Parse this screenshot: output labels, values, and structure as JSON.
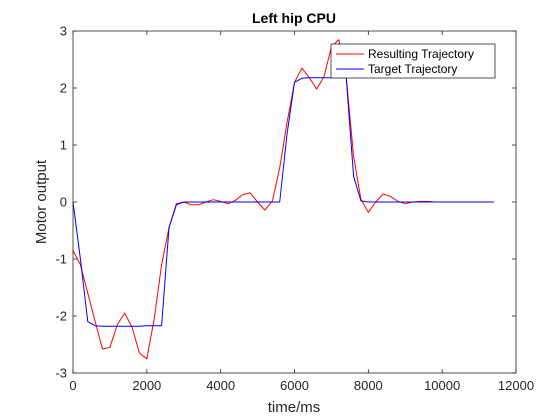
{
  "chart_data": {
    "type": "line",
    "title": "Left hip CPU",
    "xlabel": "time/ms",
    "ylabel": "Motor output",
    "xlim": [
      0,
      12000
    ],
    "ylim": [
      -3,
      3
    ],
    "xticks": [
      0,
      2000,
      4000,
      6000,
      8000,
      10000,
      12000
    ],
    "yticks": [
      -3,
      -2,
      -1,
      0,
      1,
      2,
      3
    ],
    "grid": false,
    "legend_position": "top-right",
    "series": [
      {
        "name": "Resulting Trajectory",
        "color": "#ff0000",
        "x": [
          0,
          200,
          400,
          600,
          800,
          1000,
          1200,
          1400,
          1600,
          1800,
          2000,
          2200,
          2400,
          2600,
          2800,
          3000,
          3200,
          3400,
          3600,
          3800,
          4000,
          4200,
          4400,
          4600,
          4800,
          5000,
          5200,
          5400,
          5600,
          5800,
          6000,
          6200,
          6400,
          6600,
          6800,
          7000,
          7200,
          7400,
          7600,
          7800,
          8000,
          8200,
          8400,
          8600,
          8800,
          9000,
          9200,
          9400,
          9600,
          9800,
          10000,
          10200,
          10400,
          10600,
          10800,
          11000,
          11200,
          11400
        ],
        "y": [
          -0.85,
          -1.1,
          -1.6,
          -2.1,
          -2.58,
          -2.55,
          -2.15,
          -1.95,
          -2.2,
          -2.65,
          -2.75,
          -2.05,
          -1.1,
          -0.45,
          -0.03,
          0.0,
          -0.05,
          -0.05,
          0.0,
          0.04,
          0.01,
          -0.03,
          0.03,
          0.13,
          0.16,
          0.0,
          -0.14,
          0.02,
          0.6,
          1.4,
          2.1,
          2.35,
          2.18,
          1.98,
          2.2,
          2.72,
          2.85,
          2.2,
          0.8,
          0.05,
          -0.18,
          0.0,
          0.14,
          0.1,
          0.01,
          -0.03,
          0.0,
          0.01,
          0.01,
          0.0,
          0.0,
          0.0,
          0.0,
          0.0,
          0.0,
          0.0,
          0.0,
          0.0
        ]
      },
      {
        "name": "Target Trajectory",
        "color": "#0000ff",
        "x": [
          0,
          200,
          400,
          600,
          800,
          1000,
          1200,
          1400,
          1600,
          1800,
          2000,
          2200,
          2400,
          2600,
          2800,
          3000,
          3200,
          3400,
          3600,
          3800,
          4000,
          4200,
          4400,
          4600,
          4800,
          5000,
          5200,
          5400,
          5600,
          5800,
          6000,
          6200,
          6400,
          6600,
          6800,
          7000,
          7200,
          7400,
          7600,
          7800,
          8000,
          8200,
          8400,
          8600,
          8800,
          9000,
          9200,
          9400,
          9600,
          9800,
          10000,
          10200,
          10400,
          10600,
          10800,
          11000,
          11200,
          11400
        ],
        "y": [
          0.0,
          -1.0,
          -2.1,
          -2.17,
          -2.18,
          -2.18,
          -2.18,
          -2.18,
          -2.18,
          -2.18,
          -2.17,
          -2.17,
          -2.17,
          -0.45,
          -0.05,
          0.0,
          0.0,
          0.0,
          0.0,
          0.0,
          0.0,
          0.0,
          0.0,
          0.0,
          0.0,
          0.0,
          0.0,
          0.0,
          0.0,
          1.2,
          2.1,
          2.17,
          2.18,
          2.18,
          2.18,
          2.18,
          2.18,
          2.18,
          0.45,
          0.02,
          0.0,
          0.0,
          0.0,
          0.0,
          0.0,
          0.0,
          0.0,
          0.0,
          0.0,
          0.0,
          0.0,
          0.0,
          0.0,
          0.0,
          0.0,
          0.0,
          0.0,
          0.0
        ]
      }
    ]
  }
}
